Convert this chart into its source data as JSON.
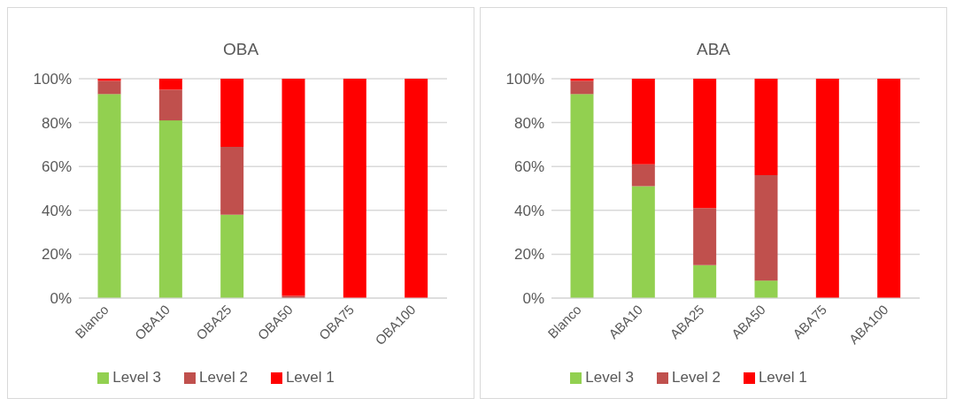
{
  "chart_data": [
    {
      "type": "bar",
      "title": "OBA",
      "stacked": true,
      "categories": [
        "Blanco",
        "OBA10",
        "OBA25",
        "OBA50",
        "OBA75",
        "OBA100"
      ],
      "series": [
        {
          "name": "Level 3",
          "color": "#92d050",
          "values": [
            93,
            81,
            38,
            0,
            0,
            0
          ]
        },
        {
          "name": "Level 2",
          "color": "#c0504d",
          "values": [
            6,
            14,
            31,
            1,
            0,
            0
          ]
        },
        {
          "name": "Level 1",
          "color": "#ff0000",
          "values": [
            1,
            5,
            31,
            99,
            100,
            100
          ]
        }
      ],
      "ylim": [
        0,
        100
      ],
      "yticks": [
        {
          "value": 0,
          "label": "0%"
        },
        {
          "value": 20,
          "label": "20%"
        },
        {
          "value": 40,
          "label": "40%"
        },
        {
          "value": 60,
          "label": "60%"
        },
        {
          "value": 80,
          "label": "80%"
        },
        {
          "value": 100,
          "label": "100%"
        }
      ],
      "grid": "y",
      "legend": "bottom"
    },
    {
      "type": "bar",
      "title": "ABA",
      "stacked": true,
      "categories": [
        "Blanco",
        "ABA10",
        "ABA25",
        "ABA50",
        "ABA75",
        "ABA100"
      ],
      "series": [
        {
          "name": "Level 3",
          "color": "#92d050",
          "values": [
            93,
            51,
            15,
            8,
            0,
            0
          ]
        },
        {
          "name": "Level 2",
          "color": "#c0504d",
          "values": [
            6,
            10,
            26,
            48,
            0,
            0
          ]
        },
        {
          "name": "Level 1",
          "color": "#ff0000",
          "values": [
            1,
            39,
            59,
            44,
            100,
            100
          ]
        }
      ],
      "ylim": [
        0,
        100
      ],
      "yticks": [
        {
          "value": 0,
          "label": "0%"
        },
        {
          "value": 20,
          "label": "20%"
        },
        {
          "value": 40,
          "label": "40%"
        },
        {
          "value": 60,
          "label": "60%"
        },
        {
          "value": 80,
          "label": "80%"
        },
        {
          "value": 100,
          "label": "100%"
        }
      ],
      "grid": "y",
      "legend": "bottom"
    }
  ]
}
